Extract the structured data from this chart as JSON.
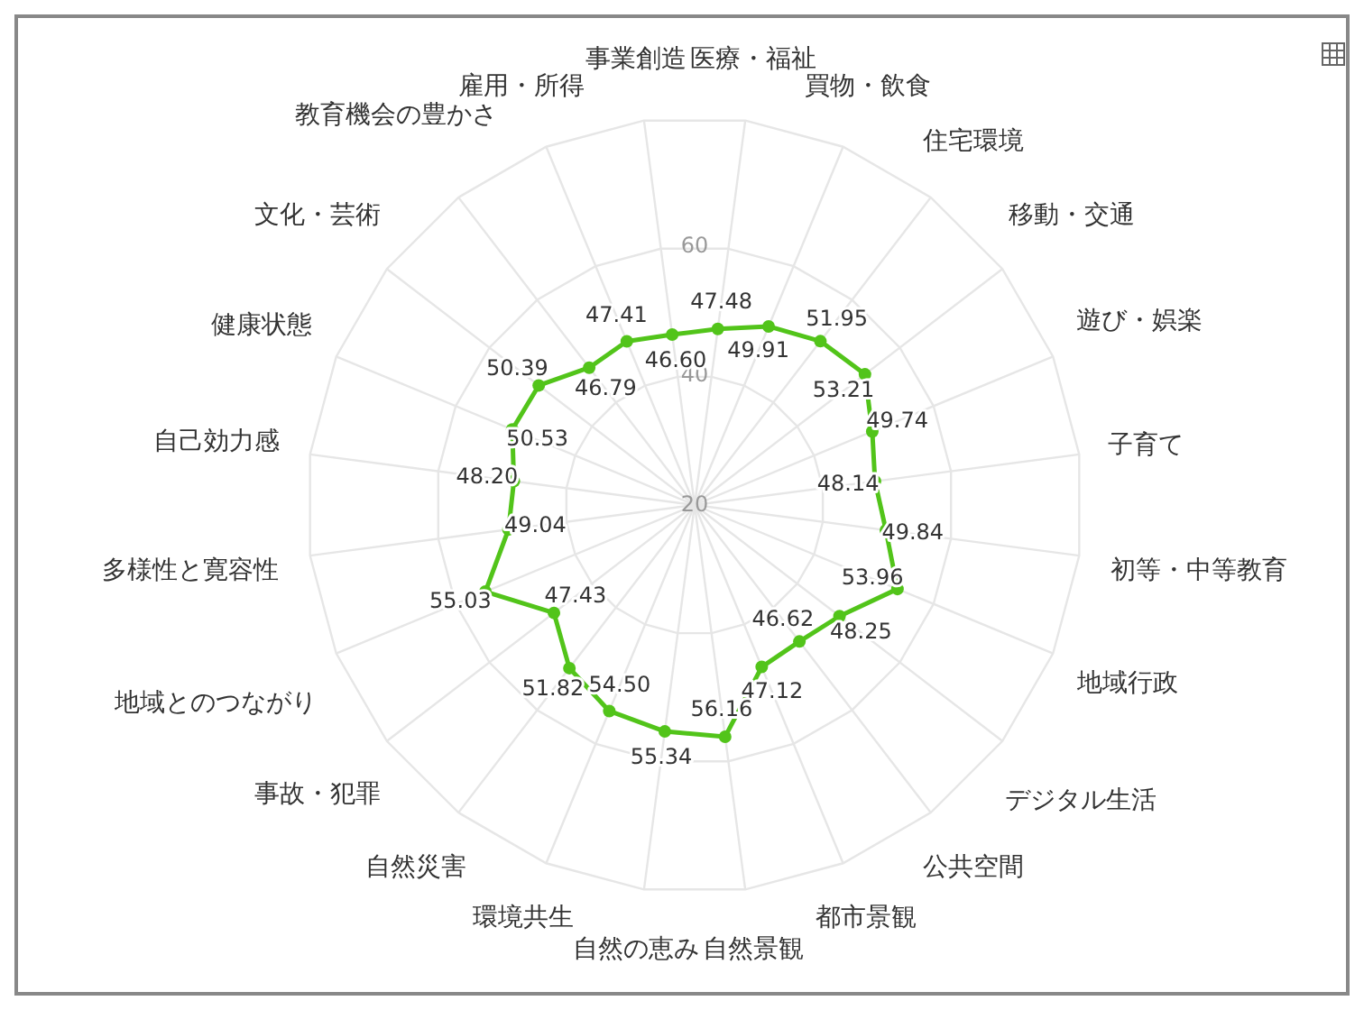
{
  "chart_data": {
    "type": "radar",
    "categories": [
      "医療・福祉",
      "買物・飲食",
      "住宅環境",
      "移動・交通",
      "遊び・娯楽",
      "子育て",
      "初等・中等教育",
      "地域行政",
      "デジタル生活",
      "公共空間",
      "都市景観",
      "自然景観",
      "自然の恵み",
      "環境共生",
      "自然災害",
      "事故・犯罪",
      "地域とのつながり",
      "多様性と寛容性",
      "自己効力感",
      "健康状態",
      "文化・芸術",
      "教育機会の豊かさ",
      "雇用・所得",
      "事業創造"
    ],
    "series": [
      {
        "color": "#52c41a",
        "values": [
          47.48,
          49.91,
          51.95,
          53.21,
          49.74,
          48.14,
          49.84,
          53.96,
          48.25,
          46.62,
          47.12,
          56.16,
          55.34,
          54.5,
          51.82,
          47.43,
          55.03,
          49.04,
          48.2,
          50.53,
          50.39,
          46.79,
          47.41,
          46.6
        ],
        "value_labels": [
          "47.48",
          "49.91",
          "51.95",
          "53.21",
          "49.74",
          "48.14",
          "49.84",
          "53.96",
          "48.25",
          "46.62",
          "47.12",
          "56.16",
          "55.34",
          "54.50",
          "51.82",
          "47.43",
          "55.03",
          "49.04",
          "48.20",
          "50.53",
          "50.39",
          "46.79",
          "47.41",
          "46.60"
        ]
      }
    ],
    "ylim": [
      20,
      80
    ],
    "yticks": [
      20,
      40,
      60
    ],
    "grid": true,
    "marker": "circle"
  }
}
